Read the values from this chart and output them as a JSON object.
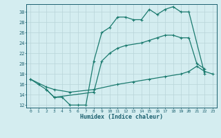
{
  "line1_x": [
    0,
    1,
    2,
    3,
    4,
    5,
    6,
    7,
    8,
    9,
    10,
    11,
    12,
    13,
    14,
    15,
    16,
    17,
    18,
    19,
    20,
    22
  ],
  "line1_y": [
    17,
    16,
    15,
    13.5,
    13.5,
    12,
    12,
    12,
    20.5,
    26,
    27,
    29,
    29,
    28.5,
    28.5,
    30.5,
    29.5,
    30.5,
    31,
    30,
    30,
    18
  ],
  "line2_x": [
    0,
    2,
    3,
    5,
    8,
    11,
    13,
    15,
    17,
    19,
    20,
    21,
    22,
    23
  ],
  "line2_y": [
    17,
    15.5,
    15,
    14.5,
    15,
    16,
    16.5,
    17,
    17.5,
    18,
    18.5,
    19.5,
    18.5,
    18
  ],
  "line3_x": [
    2,
    3,
    8,
    9,
    10,
    11,
    12,
    14,
    15,
    16,
    17,
    18,
    19,
    20,
    21,
    22
  ],
  "line3_y": [
    15,
    13.5,
    14.5,
    20.5,
    22,
    23,
    23.5,
    24,
    24.5,
    25,
    25.5,
    25.5,
    25,
    25,
    20,
    19
  ],
  "line_color": "#1a7a6e",
  "bg_color": "#d4edf0",
  "grid_color": "#b8d4d8",
  "xlabel": "Humidex (Indice chaleur)",
  "xlim": [
    -0.5,
    23.5
  ],
  "ylim": [
    11.5,
    31.5
  ],
  "yticks": [
    12,
    14,
    16,
    18,
    20,
    22,
    24,
    26,
    28,
    30
  ],
  "xticks": [
    0,
    1,
    2,
    3,
    4,
    5,
    6,
    7,
    8,
    9,
    10,
    11,
    12,
    13,
    14,
    15,
    16,
    17,
    18,
    19,
    20,
    21,
    22,
    23
  ],
  "title_color": "#1a5f6e",
  "font_family": "monospace"
}
